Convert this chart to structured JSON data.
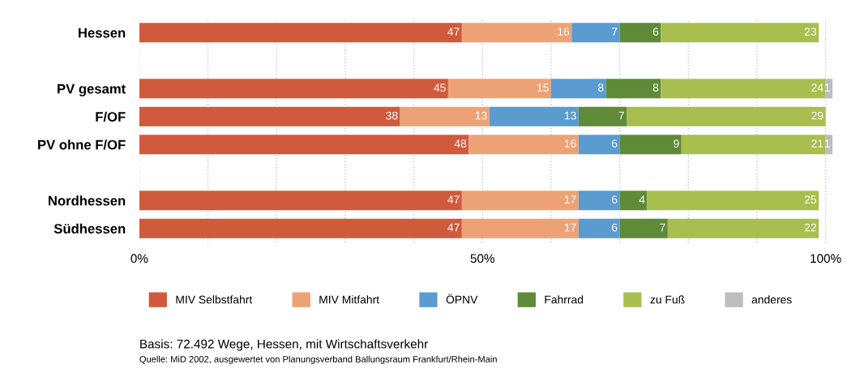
{
  "chart_data": {
    "type": "bar",
    "orientation": "horizontal",
    "stacked": true,
    "categories": [
      "Hessen",
      null,
      "PV gesamt",
      "F/OF",
      "PV ohne F/OF",
      null,
      "Nordhessen",
      "Südhessen"
    ],
    "series": [
      {
        "name": "MIV Selbstfahrt",
        "color": "#d05a3c",
        "values": [
          47,
          null,
          45,
          38,
          48,
          null,
          47,
          47
        ]
      },
      {
        "name": "MIV Mitfahrt",
        "color": "#eda276",
        "values": [
          16,
          null,
          15,
          13,
          16,
          null,
          17,
          17
        ]
      },
      {
        "name": "ÖPNV",
        "color": "#5a9bd0",
        "values": [
          7,
          null,
          8,
          13,
          6,
          null,
          6,
          6
        ]
      },
      {
        "name": "Fahrrad",
        "color": "#5f8a38",
        "values": [
          6,
          null,
          8,
          7,
          9,
          null,
          4,
          7
        ]
      },
      {
        "name": "zu Fuß",
        "color": "#a8bf50",
        "values": [
          23,
          null,
          24,
          29,
          21,
          null,
          25,
          22
        ]
      },
      {
        "name": "anderes",
        "color": "#bdbdbd",
        "values": [
          null,
          null,
          1,
          null,
          1,
          null,
          null,
          null
        ]
      }
    ],
    "xlim": [
      0,
      101
    ],
    "xticks": [
      {
        "value": 0,
        "label": "0%"
      },
      {
        "value": 10,
        "label": null
      },
      {
        "value": 20,
        "label": null
      },
      {
        "value": 30,
        "label": null
      },
      {
        "value": 40,
        "label": null
      },
      {
        "value": 50,
        "label": "50%"
      },
      {
        "value": 60,
        "label": null
      },
      {
        "value": 70,
        "label": null
      },
      {
        "value": 80,
        "label": null
      },
      {
        "value": 90,
        "label": null
      },
      {
        "value": 100,
        "label": "100%"
      }
    ],
    "grid": "x",
    "legend": "bottom",
    "data_labels": true,
    "annotations": [
      "Basis: 72.492 Wege, Hessen, mit Wirtschaftsverkehr",
      "Quelle: MiD 2002, ausgewertet von Planungsverband Ballungsraum Frankfurt/Rhein-Main"
    ]
  }
}
